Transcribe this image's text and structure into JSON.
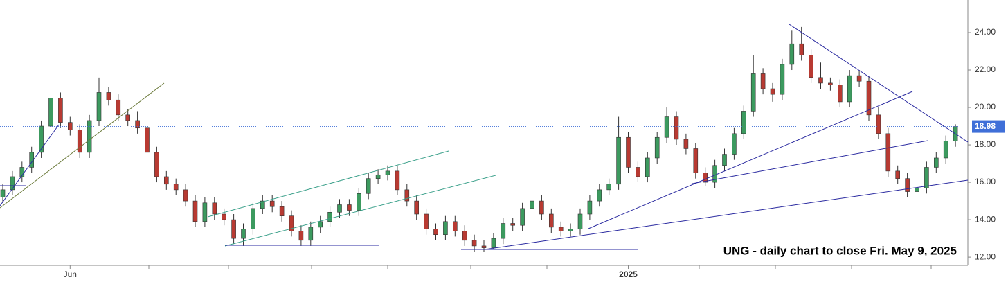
{
  "chart_data": {
    "type": "candlestick",
    "annotation": "UNG - daily chart to close Fri. May 9, 2025",
    "categories": [
      null,
      null,
      null,
      null,
      null,
      null,
      null,
      "Jun",
      null,
      null,
      null,
      null,
      null,
      null,
      null,
      null,
      null,
      null,
      null,
      null,
      null,
      null,
      null,
      null,
      null,
      null,
      null,
      null,
      null,
      null,
      null,
      null,
      null,
      null,
      null,
      null,
      null,
      null,
      null,
      null,
      null,
      null,
      null,
      null,
      null,
      null,
      null,
      null,
      null,
      null,
      null,
      null,
      null,
      null,
      null,
      null,
      null,
      null,
      null,
      null,
      null,
      null,
      null,
      null,
      null,
      "2025",
      null,
      null,
      null,
      null,
      null,
      null,
      null,
      null,
      null,
      null,
      null,
      null,
      null,
      null,
      null,
      null,
      null,
      null,
      null,
      null,
      null,
      null,
      null,
      null,
      null,
      null,
      null,
      null,
      null,
      null,
      null,
      null,
      null,
      null
    ],
    "open": [
      15.2,
      15.6,
      16.3,
      16.8,
      17.6,
      19.0,
      20.5,
      19.2,
      18.8,
      17.6,
      19.3,
      20.8,
      20.4,
      19.6,
      19.3,
      18.9,
      17.6,
      16.3,
      15.9,
      15.6,
      15.0,
      13.9,
      14.9,
      14.3,
      14.0,
      13.0,
      13.5,
      14.6,
      15.0,
      14.7,
      14.2,
      13.4,
      12.9,
      13.6,
      13.9,
      14.4,
      14.8,
      14.5,
      15.4,
      16.2,
      16.4,
      16.6,
      15.6,
      15.0,
      14.3,
      13.5,
      13.2,
      13.9,
      13.4,
      12.9,
      12.6,
      12.5,
      13.0,
      13.8,
      13.7,
      14.6,
      15.0,
      14.3,
      13.6,
      13.4,
      13.5,
      14.3,
      15.0,
      15.6,
      15.9,
      18.4,
      16.8,
      16.3,
      17.3,
      18.4,
      19.5,
      18.3,
      17.8,
      16.5,
      16.0,
      16.9,
      17.5,
      18.6,
      19.8,
      21.8,
      21.0,
      20.7,
      22.3,
      23.4,
      22.8,
      21.6,
      21.3,
      21.2,
      20.3,
      21.7,
      21.4,
      19.6,
      18.6,
      16.6,
      16.2,
      15.5,
      15.7,
      16.8,
      17.3,
      18.2
    ],
    "high": [
      15.9,
      16.6,
      17.1,
      17.9,
      19.3,
      21.7,
      20.8,
      19.5,
      19.1,
      19.6,
      21.6,
      21.1,
      20.7,
      19.9,
      19.8,
      19.2,
      17.9,
      16.6,
      16.2,
      15.9,
      15.3,
      15.2,
      15.2,
      14.6,
      14.3,
      13.8,
      14.9,
      15.3,
      15.3,
      15.0,
      14.5,
      13.7,
      13.9,
      14.2,
      14.7,
      15.1,
      15.1,
      15.7,
      16.5,
      16.7,
      16.9,
      16.9,
      15.9,
      15.3,
      14.6,
      13.8,
      14.2,
      14.2,
      13.7,
      13.2,
      12.9,
      13.3,
      14.1,
      14.1,
      14.9,
      15.4,
      15.3,
      14.6,
      13.9,
      13.8,
      14.6,
      15.3,
      15.9,
      16.2,
      19.5,
      18.7,
      17.1,
      17.6,
      18.7,
      20.0,
      19.8,
      18.6,
      18.1,
      16.8,
      17.2,
      17.8,
      18.9,
      20.1,
      22.8,
      22.1,
      21.3,
      22.6,
      24.1,
      24.3,
      23.1,
      22.4,
      21.6,
      21.5,
      22.0,
      22.0,
      21.7,
      20.0,
      18.9,
      16.9,
      16.5,
      16.0,
      17.1,
      17.6,
      18.5,
      19.1
    ],
    "low": [
      14.9,
      15.3,
      16.0,
      16.5,
      17.3,
      18.7,
      18.9,
      18.5,
      17.3,
      17.3,
      19.0,
      20.1,
      19.3,
      19.0,
      18.6,
      17.3,
      16.0,
      15.6,
      15.3,
      14.7,
      13.6,
      13.6,
      14.0,
      13.7,
      12.7,
      12.6,
      13.2,
      14.3,
      14.4,
      13.9,
      13.1,
      12.6,
      12.6,
      13.3,
      13.6,
      14.1,
      14.2,
      14.2,
      15.1,
      15.9,
      16.1,
      15.3,
      14.7,
      14.0,
      13.2,
      12.9,
      12.9,
      13.1,
      12.6,
      12.3,
      12.3,
      12.4,
      12.7,
      13.4,
      13.4,
      14.3,
      14.0,
      13.3,
      13.1,
      13.1,
      13.2,
      14.0,
      14.7,
      15.3,
      15.6,
      16.5,
      16.0,
      16.0,
      17.0,
      18.1,
      18.0,
      17.5,
      16.2,
      15.8,
      15.7,
      16.6,
      17.2,
      18.3,
      19.5,
      20.7,
      20.3,
      20.4,
      22.0,
      22.5,
      21.3,
      21.0,
      20.9,
      20.0,
      20.0,
      21.1,
      19.3,
      18.3,
      16.3,
      15.9,
      15.2,
      15.1,
      15.4,
      16.5,
      17.0,
      17.9
    ],
    "close": [
      15.6,
      16.3,
      16.8,
      17.6,
      19.0,
      20.5,
      19.2,
      18.8,
      17.6,
      19.3,
      20.8,
      20.4,
      19.6,
      19.3,
      18.9,
      17.6,
      16.3,
      15.9,
      15.6,
      15.0,
      13.9,
      14.9,
      14.3,
      14.0,
      13.0,
      13.5,
      14.6,
      15.0,
      14.7,
      14.2,
      13.4,
      12.9,
      13.6,
      13.9,
      14.4,
      14.8,
      14.5,
      15.4,
      16.2,
      16.4,
      16.6,
      15.6,
      15.0,
      14.3,
      13.5,
      13.2,
      13.9,
      13.4,
      12.9,
      12.6,
      12.5,
      13.0,
      13.8,
      13.7,
      14.6,
      15.0,
      14.3,
      13.6,
      13.4,
      13.5,
      14.3,
      15.0,
      15.6,
      15.9,
      18.4,
      16.8,
      16.3,
      17.3,
      18.4,
      19.5,
      18.3,
      17.8,
      16.5,
      16.0,
      16.9,
      17.5,
      18.6,
      19.8,
      21.8,
      21.0,
      20.7,
      22.3,
      23.4,
      22.8,
      21.6,
      21.3,
      21.2,
      20.3,
      21.7,
      21.4,
      19.6,
      18.6,
      16.6,
      16.2,
      15.5,
      15.7,
      16.8,
      17.3,
      18.2,
      18.98
    ],
    "up_color": "#3c9a5f",
    "down_color": "#b83a32",
    "last_price": 18.98,
    "last_price_color": "#3f6fd8",
    "ylim": [
      11.56,
      25.74
    ],
    "yticks": [
      {
        "value": 12,
        "label": "12.00"
      },
      {
        "value": 14,
        "label": "14.00"
      },
      {
        "value": 16,
        "label": "16.00"
      },
      {
        "value": 18,
        "label": "18.00"
      },
      {
        "value": 20,
        "label": "20.00"
      },
      {
        "value": 22,
        "label": "22.00"
      },
      {
        "value": 24,
        "label": "24.00"
      }
    ]
  }
}
